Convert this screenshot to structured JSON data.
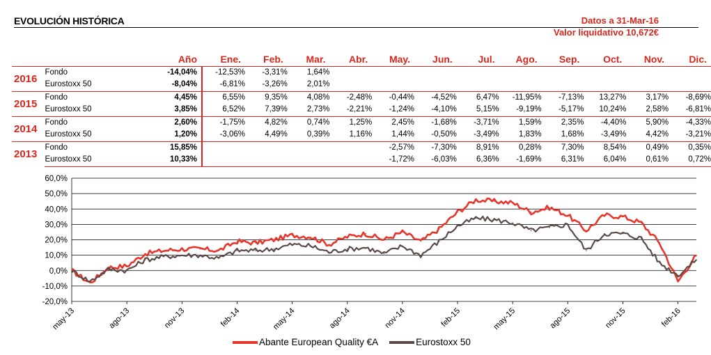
{
  "header": {
    "title": "EVOLUCIÓN HISTÓRICA",
    "date_line": "Datos a 31-Mar-16",
    "nav_line": "Valor liquidativo 10,672€"
  },
  "table": {
    "columns": [
      "Año",
      "Ene.",
      "Feb.",
      "Mar.",
      "Abr.",
      "May.",
      "Jun.",
      "Jul.",
      "Ago.",
      "Sep.",
      "Oct.",
      "Nov.",
      "Dic."
    ],
    "years": [
      {
        "year": "2016",
        "rows": [
          {
            "label": "Fondo",
            "ytd": "-14,04%",
            "months": [
              "-12,53%",
              "-3,31%",
              "1,64%",
              "",
              "",
              "",
              "",
              "",
              "",
              "",
              "",
              ""
            ]
          },
          {
            "label": "Eurostoxx 50",
            "ytd": "-8,04%",
            "months": [
              "-6,81%",
              "-3,26%",
              "2,01%",
              "",
              "",
              "",
              "",
              "",
              "",
              "",
              "",
              ""
            ]
          }
        ]
      },
      {
        "year": "2015",
        "rows": [
          {
            "label": "Fondo",
            "ytd": "4,45%",
            "months": [
              "6,55%",
              "9,35%",
              "4,08%",
              "-2,48%",
              "-0,44%",
              "-4,52%",
              "6,47%",
              "-11,95%",
              "-7,13%",
              "13,27%",
              "3,17%",
              "-8,69%"
            ]
          },
          {
            "label": "Eurostoxx 50",
            "ytd": "3,85%",
            "months": [
              "6,52%",
              "7,39%",
              "2,73%",
              "-2,21%",
              "-1,24%",
              "-4,10%",
              "5,15%",
              "-9,19%",
              "-5,17%",
              "10,24%",
              "2,58%",
              "-6,81%"
            ]
          }
        ]
      },
      {
        "year": "2014",
        "rows": [
          {
            "label": "Fondo",
            "ytd": "2,60%",
            "months": [
              "-1,75%",
              "4,82%",
              "0,74%",
              "1,25%",
              "2,45%",
              "-1,68%",
              "-3,71%",
              "1,59%",
              "2,35%",
              "-4,40%",
              "5,90%",
              "-4,33%"
            ]
          },
          {
            "label": "Eurostoxx 50",
            "ytd": "1,20%",
            "months": [
              "-3,06%",
              "4,49%",
              "0,39%",
              "1,16%",
              "1,44%",
              "-0,50%",
              "-3,49%",
              "1,83%",
              "1,68%",
              "-3,49%",
              "4,42%",
              "-3,21%"
            ]
          }
        ]
      },
      {
        "year": "2013",
        "rows": [
          {
            "label": "Fondo",
            "ytd": "15,85%",
            "months": [
              "",
              "",
              "",
              "",
              "-2,57%",
              "-7,30%",
              "8,91%",
              "0,28%",
              "7,30%",
              "8,54%",
              "0,49%",
              "0,35%"
            ]
          },
          {
            "label": "Eurostoxx 50",
            "ytd": "10,33%",
            "months": [
              "",
              "",
              "",
              "",
              "-1,72%",
              "-6,03%",
              "6,36%",
              "-1,69%",
              "6,31%",
              "6,04%",
              "0,61%",
              "0,72%"
            ]
          }
        ]
      }
    ]
  },
  "chart_data": {
    "type": "line",
    "ylim": [
      -20,
      60
    ],
    "yticks": [
      "-20,0%",
      "-10,0%",
      "0,0%",
      "10,0%",
      "20,0%",
      "30,0%",
      "40,0%",
      "50,0%",
      "60,0%"
    ],
    "ytick_values": [
      -20,
      -10,
      0,
      10,
      20,
      30,
      40,
      50,
      60
    ],
    "xtick_labels": [
      "may-13",
      "ago-13",
      "nov-13",
      "feb-14",
      "may-14",
      "ago-14",
      "nov-14",
      "feb-15",
      "may-15",
      "ago-15",
      "nov-15",
      "feb-16"
    ],
    "x": [
      "may-13",
      "jun-13",
      "jul-13",
      "ago-13",
      "sep-13",
      "oct-13",
      "nov-13",
      "dic-13",
      "ene-14",
      "feb-14",
      "mar-14",
      "abr-14",
      "may-14",
      "jun-14",
      "jul-14",
      "ago-14",
      "sep-14",
      "oct-14",
      "nov-14",
      "dic-14",
      "ene-15",
      "feb-15",
      "mar-15",
      "abr-15",
      "may-15",
      "jun-15",
      "jul-15",
      "ago-15",
      "sep-15",
      "oct-15",
      "nov-15",
      "dic-15",
      "ene-16",
      "feb-16",
      "mar-16"
    ],
    "grid": true,
    "legend_position": "bottom",
    "series": [
      {
        "name": "Abante European Quality €A",
        "color": "#e8352b",
        "values": [
          0,
          -8,
          2,
          3,
          11,
          13,
          14,
          14,
          13,
          19,
          18,
          20,
          23,
          22,
          17,
          22,
          24,
          20,
          25,
          19,
          27,
          38,
          46,
          45,
          44,
          38,
          41,
          36,
          26,
          36,
          35,
          31,
          18,
          -7,
          10
        ]
      },
      {
        "name": "Eurostoxx 50",
        "color": "#5a4a47",
        "values": [
          0,
          -7,
          1,
          0,
          7,
          9,
          10,
          10,
          8,
          13,
          13,
          14,
          17,
          16,
          12,
          14,
          15,
          11,
          16,
          10,
          19,
          29,
          34,
          33,
          31,
          26,
          28,
          30,
          13,
          24,
          24,
          21,
          5,
          -3,
          7
        ]
      }
    ]
  }
}
